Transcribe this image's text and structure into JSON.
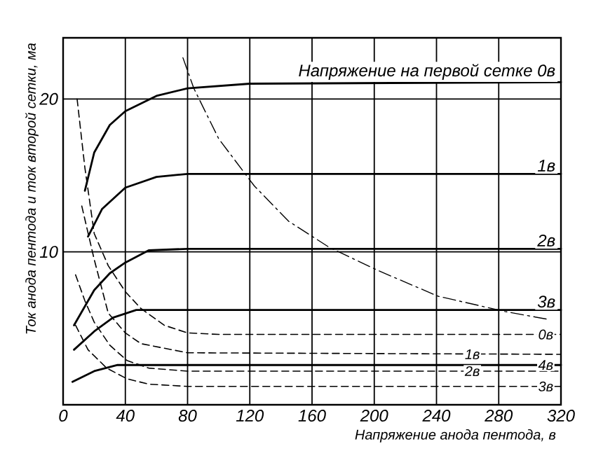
{
  "chart_data": {
    "type": "line",
    "xlabel": "Напряжение анода пентода, в",
    "ylabel": "Ток анода пентода и ток второй сетки, ма",
    "xlim": [
      0,
      320
    ],
    "ylim": [
      0,
      24
    ],
    "xticks": [
      0,
      40,
      80,
      120,
      160,
      200,
      240,
      280,
      320
    ],
    "yticks": [
      10,
      20
    ],
    "grid": true,
    "series": [
      {
        "name": "Напряжение на первой сетке 0в",
        "color": "#000000",
        "line_style": "solid",
        "x": [
          14,
          20,
          30,
          40,
          60,
          80,
          120,
          320
        ],
        "values": [
          14,
          16.5,
          18.3,
          19.2,
          20.2,
          20.7,
          21,
          21.1
        ]
      },
      {
        "name": "1в",
        "color": "#000000",
        "line_style": "solid",
        "x": [
          16,
          25,
          40,
          60,
          80,
          320
        ],
        "values": [
          11,
          12.8,
          14.2,
          14.9,
          15.1,
          15.1
        ]
      },
      {
        "name": "2в",
        "color": "#000000",
        "line_style": "solid",
        "x": [
          7,
          20,
          30,
          40,
          55,
          80,
          320
        ],
        "values": [
          5.2,
          7.5,
          8.6,
          9.3,
          10.1,
          10.2,
          10.2
        ]
      },
      {
        "name": "3в",
        "color": "#000000",
        "line_style": "solid",
        "x": [
          7,
          20,
          32,
          47,
          320
        ],
        "values": [
          3.6,
          4.8,
          5.7,
          6.2,
          6.2
        ]
      },
      {
        "name": "4в",
        "color": "#000000",
        "line_style": "solid",
        "x": [
          6,
          20,
          35,
          320
        ],
        "values": [
          1.5,
          2.2,
          2.6,
          2.6
        ]
      },
      {
        "name": "0в",
        "color": "#000000",
        "line_style": "dashed",
        "x": [
          9,
          14,
          20,
          29,
          40,
          50,
          65,
          80,
          100,
          320
        ],
        "values": [
          20,
          15.5,
          11.2,
          9.1,
          7.4,
          6.3,
          5.2,
          4.7,
          4.6,
          4.6
        ]
      },
      {
        "name": "1в",
        "color": "#000000",
        "line_style": "dashed",
        "x": [
          12,
          20,
          29,
          40,
          50,
          80,
          320
        ],
        "values": [
          13,
          9.5,
          6.0,
          4.7,
          4.0,
          3.4,
          3.3
        ]
      },
      {
        "name": "2в",
        "color": "#000000",
        "line_style": "dashed",
        "x": [
          8,
          14,
          20,
          30,
          41,
          55,
          80,
          320
        ],
        "values": [
          8.5,
          6.8,
          5.4,
          3.9,
          2.9,
          2.4,
          2.2,
          2.2
        ]
      },
      {
        "name": "3в",
        "color": "#000000",
        "line_style": "dashed",
        "x": [
          8,
          16,
          28,
          41,
          55,
          80,
          320
        ],
        "values": [
          5.2,
          3.6,
          2.4,
          1.7,
          1.35,
          1.2,
          1.2
        ]
      },
      {
        "color": "#000000",
        "line_style": "dashdot",
        "x": [
          77,
          84,
          100,
          123,
          145,
          171,
          202,
          241,
          284,
          311
        ],
        "values": [
          22.7,
          20.7,
          17.4,
          14.3,
          12.0,
          10.3,
          8.8,
          7.1,
          6.1,
          5.6
        ]
      }
    ]
  }
}
